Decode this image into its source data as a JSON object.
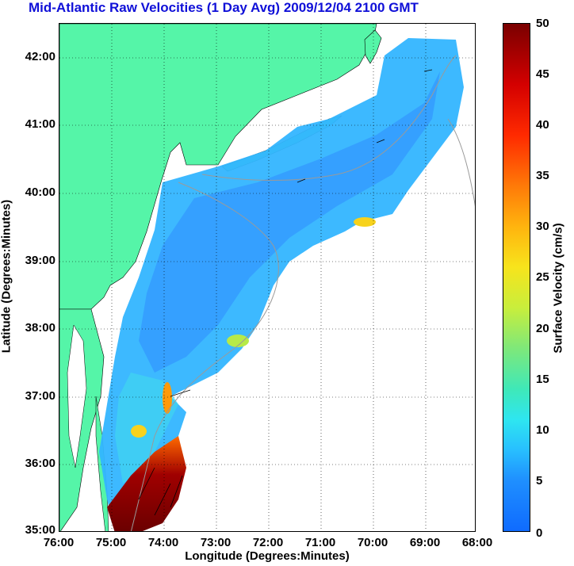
{
  "title": "Mid-Atlantic Raw Velocities (1 Day Avg) 2009/12/04 2100 GMT",
  "axes": {
    "xlabel": "Longitude (Degrees:Minutes)",
    "ylabel": "Latitude (Degrees:Minutes)",
    "x_ticks": [
      "76:00",
      "75:00",
      "74:00",
      "73:00",
      "72:00",
      "71:00",
      "70:00",
      "69:00",
      "68:00"
    ],
    "y_ticks": [
      "42:00",
      "41:00",
      "40:00",
      "39:00",
      "38:00",
      "37:00",
      "36:00",
      "35:00"
    ]
  },
  "colorbar": {
    "title": "Surface Velocity (cm/s)",
    "ticks": [
      "50",
      "45",
      "40",
      "35",
      "30",
      "25",
      "20",
      "15",
      "10",
      "5",
      "0"
    ],
    "range": [
      0,
      50
    ]
  },
  "colors": {
    "land": "#55f5a8",
    "title_text": "#1010d8",
    "field_low": "#2f8cff",
    "field_mid": "#33c8f5",
    "field_high": "#7a0000"
  }
}
